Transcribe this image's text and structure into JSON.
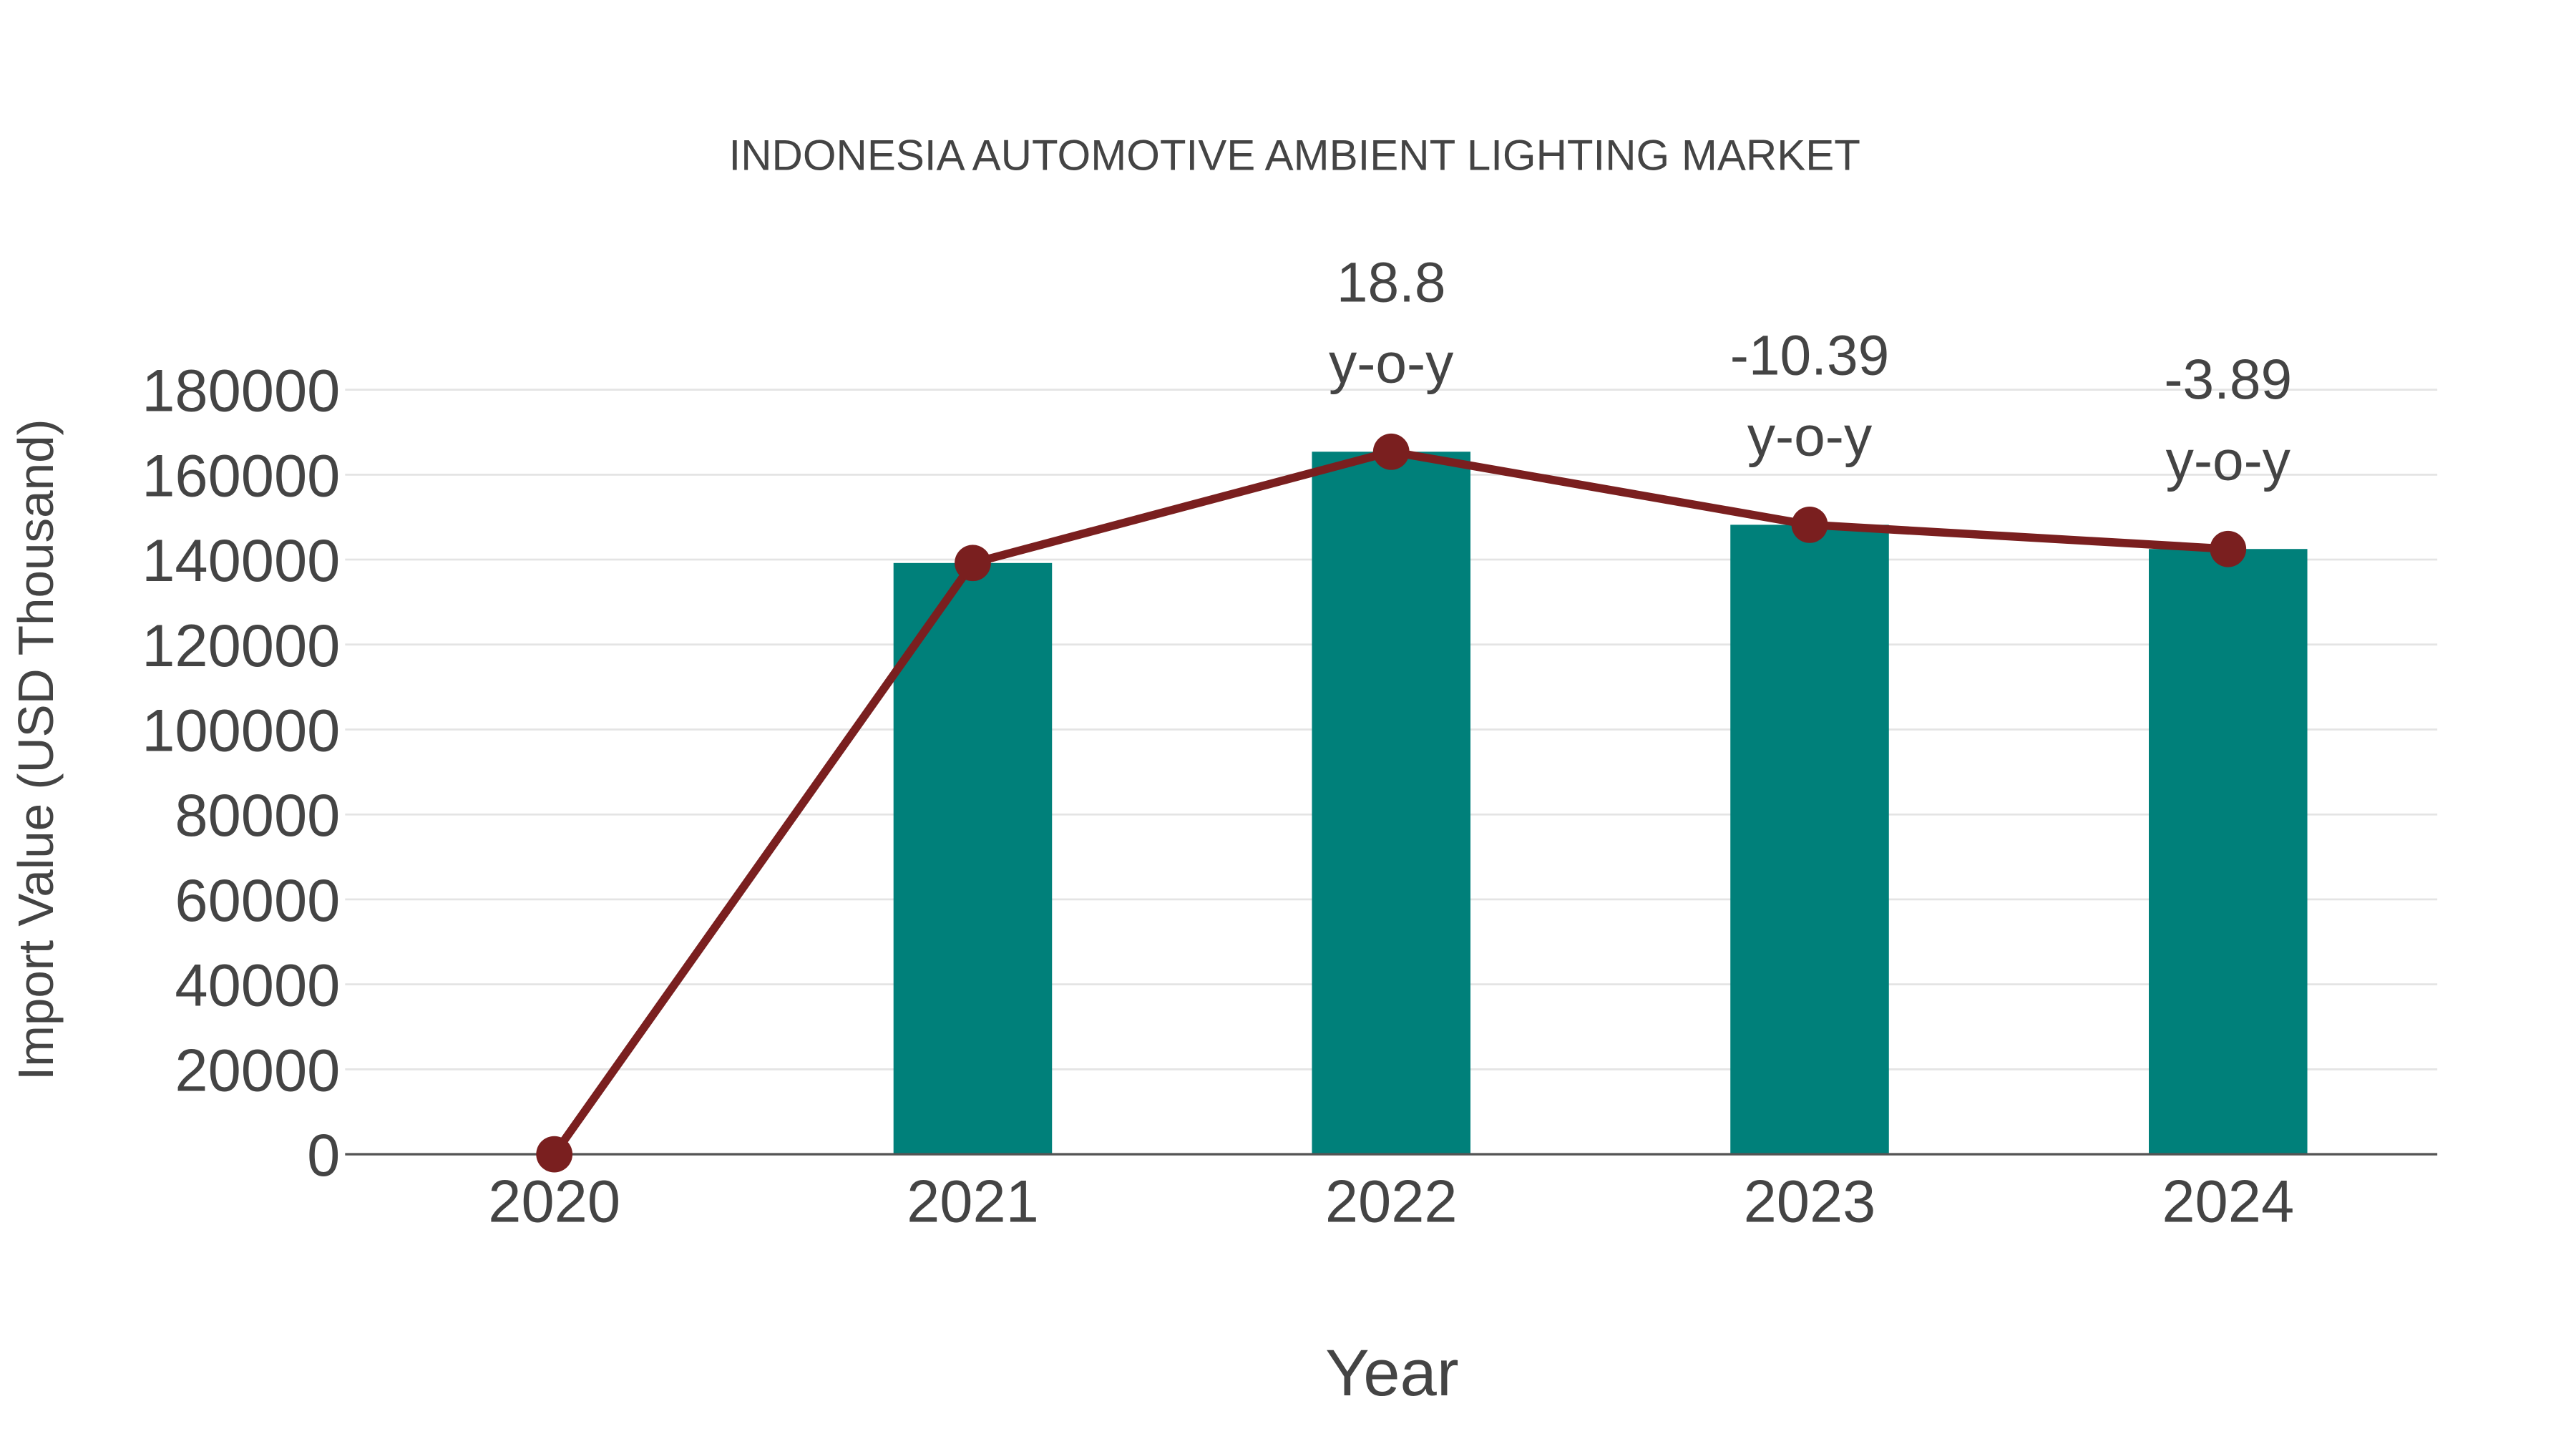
{
  "chart_data": {
    "type": "bar",
    "title": "INDONESIA AUTOMOTIVE AMBIENT LIGHTING MARKET",
    "xlabel": "Year",
    "ylabel": "Import Value (USD Thousand)",
    "categories": [
      "2020",
      "2021",
      "2022",
      "2023",
      "2024"
    ],
    "ylim": [
      0,
      180000
    ],
    "yticks": [
      0,
      20000,
      40000,
      60000,
      80000,
      100000,
      120000,
      140000,
      160000,
      180000
    ],
    "grid": true,
    "series": [
      {
        "name": "Import Value",
        "type": "bar",
        "color": "#00807a",
        "values": [
          0,
          139200,
          165400,
          148200,
          142500
        ]
      },
      {
        "name": "Trend",
        "type": "line",
        "color": "#7a1f1f",
        "values": [
          0,
          139200,
          165400,
          148200,
          142500
        ]
      }
    ],
    "annotations": [
      {
        "category": "2022",
        "value": "18.8",
        "unit": "y-o-y"
      },
      {
        "category": "2023",
        "value": "-10.39",
        "unit": "y-o-y"
      },
      {
        "category": "2024",
        "value": "-3.89",
        "unit": "y-o-y"
      }
    ]
  }
}
